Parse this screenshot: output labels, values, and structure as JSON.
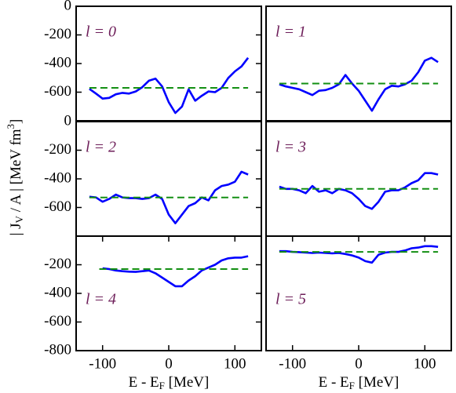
{
  "chart_data": [
    {
      "type": "line",
      "annotation": "l = 0",
      "xlim": [
        -140,
        140
      ],
      "ylim": [
        -800,
        0
      ],
      "yticks": [
        -600,
        -400,
        -200,
        0
      ],
      "series": [
        {
          "color": "#0000ff",
          "style": "solid",
          "x": [
            -120,
            -110,
            -100,
            -90,
            -80,
            -70,
            -60,
            -50,
            -40,
            -30,
            -20,
            -10,
            0,
            10,
            20,
            30,
            40,
            50,
            60,
            70,
            80,
            90,
            100,
            110,
            120
          ],
          "values": [
            -577,
            -610,
            -645,
            -640,
            -615,
            -605,
            -610,
            -595,
            -565,
            -520,
            -505,
            -560,
            -670,
            -745,
            -700,
            -580,
            -660,
            -625,
            -595,
            -600,
            -570,
            -500,
            -455,
            -420,
            -360
          ]
        },
        {
          "color": "#138f13",
          "style": "dashed",
          "x": [
            -120,
            120
          ],
          "values": [
            -570,
            -570
          ]
        }
      ]
    },
    {
      "type": "line",
      "annotation": "l = 1",
      "xlim": [
        -140,
        140
      ],
      "ylim": [
        -800,
        0
      ],
      "series": [
        {
          "color": "#0000ff",
          "style": "solid",
          "x": [
            -120,
            -110,
            -100,
            -90,
            -80,
            -70,
            -60,
            -50,
            -40,
            -30,
            -20,
            -10,
            0,
            10,
            20,
            30,
            40,
            50,
            60,
            70,
            80,
            90,
            100,
            110,
            120
          ],
          "values": [
            -545,
            -560,
            -570,
            -580,
            -600,
            -620,
            -590,
            -585,
            -570,
            -545,
            -480,
            -540,
            -590,
            -660,
            -730,
            -650,
            -580,
            -555,
            -560,
            -545,
            -520,
            -460,
            -380,
            -360,
            -390
          ]
        },
        {
          "color": "#138f13",
          "style": "dashed",
          "x": [
            -120,
            120
          ],
          "values": [
            -540,
            -540
          ]
        }
      ]
    },
    {
      "type": "line",
      "annotation": "l = 2",
      "xlim": [
        -140,
        140
      ],
      "ylim": [
        -800,
        0
      ],
      "yticks": [
        -600,
        -400,
        -200,
        0
      ],
      "ylabel": [
        "| J",
        "V",
        " / A | [MeV fm",
        "3",
        "]"
      ],
      "series": [
        {
          "color": "#0000ff",
          "style": "solid",
          "x": [
            -120,
            -110,
            -100,
            -90,
            -80,
            -70,
            -60,
            -50,
            -40,
            -30,
            -20,
            -10,
            0,
            10,
            20,
            30,
            40,
            50,
            60,
            70,
            80,
            90,
            100,
            110,
            120
          ],
          "values": [
            -525,
            -530,
            -560,
            -540,
            -510,
            -530,
            -535,
            -535,
            -540,
            -535,
            -510,
            -540,
            -650,
            -710,
            -650,
            -590,
            -570,
            -530,
            -550,
            -480,
            -450,
            -440,
            -420,
            -350,
            -370
          ]
        },
        {
          "color": "#138f13",
          "style": "dashed",
          "x": [
            -120,
            120
          ],
          "values": [
            -530,
            -530
          ]
        }
      ]
    },
    {
      "type": "line",
      "annotation": "l = 3",
      "xlim": [
        -140,
        140
      ],
      "ylim": [
        -800,
        0
      ],
      "series": [
        {
          "color": "#0000ff",
          "style": "solid",
          "x": [
            -120,
            -110,
            -100,
            -90,
            -80,
            -70,
            -60,
            -50,
            -40,
            -30,
            -20,
            -10,
            0,
            10,
            20,
            30,
            40,
            50,
            60,
            70,
            80,
            90,
            100,
            110,
            120
          ],
          "values": [
            -455,
            -470,
            -470,
            -480,
            -500,
            -450,
            -490,
            -480,
            -500,
            -470,
            -480,
            -500,
            -540,
            -590,
            -610,
            -560,
            -490,
            -480,
            -480,
            -460,
            -430,
            -410,
            -360,
            -360,
            -370
          ]
        },
        {
          "color": "#138f13",
          "style": "dashed",
          "x": [
            -120,
            120
          ],
          "values": [
            -470,
            -470
          ]
        }
      ]
    },
    {
      "type": "line",
      "annotation": "l = 4",
      "xlim": [
        -140,
        140
      ],
      "ylim": [
        -800,
        0
      ],
      "yticks": [
        -800,
        -600,
        -400,
        -200
      ],
      "xticks": [
        -100,
        0,
        100
      ],
      "xlabel": [
        "E - E",
        "F",
        " [MeV]"
      ],
      "series": [
        {
          "color": "#0000ff",
          "style": "solid",
          "x": [
            -100,
            -90,
            -80,
            -70,
            -60,
            -50,
            -40,
            -30,
            -20,
            -10,
            0,
            10,
            20,
            30,
            40,
            50,
            60,
            70,
            80,
            90,
            100,
            110,
            120
          ],
          "values": [
            -225,
            -230,
            -240,
            -245,
            -248,
            -250,
            -245,
            -240,
            -260,
            -290,
            -320,
            -350,
            -350,
            -310,
            -280,
            -240,
            -220,
            -200,
            -170,
            -155,
            -150,
            -150,
            -140
          ]
        },
        {
          "color": "#138f13",
          "style": "dashed",
          "x": [
            -105,
            120
          ],
          "values": [
            -230,
            -230
          ]
        }
      ]
    },
    {
      "type": "line",
      "annotation": "l = 5",
      "xlim": [
        -140,
        140
      ],
      "ylim": [
        -800,
        0
      ],
      "xticks": [
        -100,
        0,
        100
      ],
      "xlabel": [
        "E - E",
        "F",
        " [MeV]"
      ],
      "series": [
        {
          "color": "#0000ff",
          "style": "solid",
          "x": [
            -120,
            -110,
            -100,
            -90,
            -80,
            -70,
            -60,
            -50,
            -40,
            -30,
            -20,
            -10,
            0,
            10,
            20,
            30,
            40,
            50,
            60,
            70,
            80,
            90,
            100,
            110,
            120
          ],
          "values": [
            -105,
            -105,
            -110,
            -112,
            -115,
            -118,
            -115,
            -118,
            -120,
            -118,
            -125,
            -135,
            -150,
            -175,
            -185,
            -130,
            -115,
            -110,
            -110,
            -100,
            -85,
            -80,
            -70,
            -70,
            -75
          ]
        },
        {
          "color": "#138f13",
          "style": "dashed",
          "x": [
            -120,
            120
          ],
          "values": [
            -110,
            -110
          ]
        }
      ]
    }
  ]
}
